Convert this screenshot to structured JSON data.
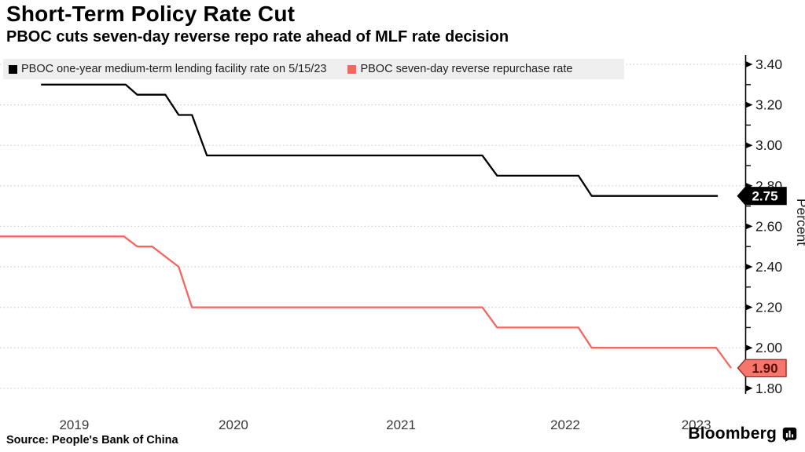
{
  "header": {
    "title": "Short-Term Policy Rate Cut",
    "subtitle": "PBOC cuts seven-day reverse repo rate ahead of MLF rate decision"
  },
  "footer": {
    "source": "Source: People's Bank of China",
    "brand": "Bloomberg"
  },
  "chart_data": {
    "type": "line",
    "title": "Short-Term Policy Rate Cut",
    "subtitle": "PBOC cuts seven-day reverse repo rate ahead of MLF rate decision",
    "ylabel": "Percent",
    "legend_position": "top",
    "grid": "horizontal dotted",
    "grid_color": "#cfcfcf",
    "axis_color": "#000000",
    "ylim": [
      1.75,
      3.45
    ],
    "xlim": [
      2019.0,
      2023.55
    ],
    "y_tick_labels": [
      "3.40",
      "3.20",
      "3.00",
      "2.80",
      "2.60",
      "2.40",
      "2.20",
      "2.00",
      "1.80"
    ],
    "y_tick_values": [
      3.4,
      3.2,
      3.0,
      2.8,
      2.6,
      2.4,
      2.2,
      2.0,
      1.8
    ],
    "y_minor_ticks": [
      3.3,
      3.1,
      2.9,
      2.7,
      2.5,
      2.3,
      2.1,
      1.9
    ],
    "x_tick_labels": [
      "2019",
      "2020",
      "2021",
      "2022",
      "2023"
    ],
    "x_tick_positions": [
      2019.49,
      2020.45,
      2021.46,
      2022.45,
      2023.24
    ],
    "series": [
      {
        "name": "PBOC one-year medium-term lending facility rate on 5/15/23",
        "color": "#000000",
        "end_value": 2.75,
        "end_label": "2.75",
        "tag": {
          "fill": "#000000",
          "border": "#000000",
          "text_color": "#ffffff"
        },
        "points": [
          [
            2019.29,
            3.3
          ],
          [
            2019.8,
            3.3
          ],
          [
            2019.87,
            3.25
          ],
          [
            2020.04,
            3.25
          ],
          [
            2020.12,
            3.15
          ],
          [
            2020.2,
            3.15
          ],
          [
            2020.29,
            2.95
          ],
          [
            2021.95,
            2.95
          ],
          [
            2022.04,
            2.85
          ],
          [
            2022.53,
            2.85
          ],
          [
            2022.61,
            2.75
          ],
          [
            2023.37,
            2.75
          ]
        ]
      },
      {
        "name": "PBOC seven-day reverse repurchase rate",
        "color": "#f4665e",
        "end_value": 1.9,
        "end_label": "1.90",
        "tag": {
          "fill": "#f4766d",
          "border": "#a03029",
          "text_color": "#5c100a"
        },
        "points": [
          [
            2019.04,
            2.55
          ],
          [
            2019.79,
            2.55
          ],
          [
            2019.87,
            2.5
          ],
          [
            2019.96,
            2.5
          ],
          [
            2020.12,
            2.4
          ],
          [
            2020.2,
            2.2
          ],
          [
            2021.95,
            2.2
          ],
          [
            2022.04,
            2.1
          ],
          [
            2022.53,
            2.1
          ],
          [
            2022.61,
            2.0
          ],
          [
            2023.36,
            2.0
          ],
          [
            2023.45,
            1.9
          ]
        ]
      }
    ]
  }
}
